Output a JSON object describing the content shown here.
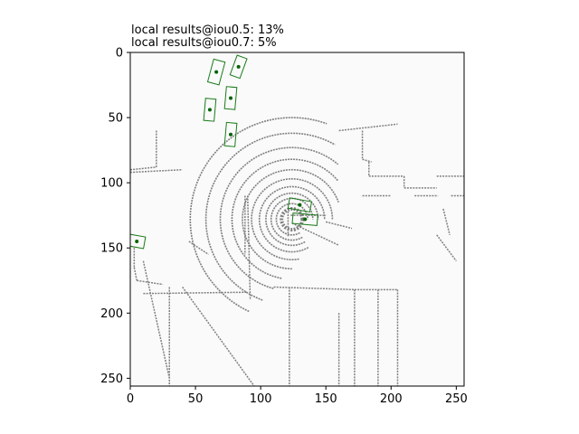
{
  "chart_data": {
    "type": "scatter",
    "title_lines": [
      "local results@iou0.5: 13%",
      "local results@iou0.7: 5%"
    ],
    "xlabel": "",
    "ylabel": "",
    "xlim": [
      0,
      256
    ],
    "ylim": [
      256,
      0
    ],
    "y_axis_inverted": true,
    "x_ticks": [
      0,
      50,
      100,
      150,
      200,
      250
    ],
    "y_ticks": [
      0,
      50,
      100,
      150,
      200,
      250
    ],
    "grid": false,
    "background_color": "#fafafa",
    "point_cloud_color": "#808080",
    "box_color": "#1a7a1a",
    "center_color": "#006400",
    "point_cloud": {
      "sensor_center": [
        124,
        128
      ],
      "rings": [
        {
          "r": 12,
          "start": 60,
          "end": 360
        },
        {
          "r": 16,
          "start": 60,
          "end": 360
        },
        {
          "r": 20,
          "start": 60,
          "end": 360
        },
        {
          "r": 25,
          "start": 60,
          "end": 360
        },
        {
          "r": 31,
          "start": 80,
          "end": 360
        },
        {
          "r": 38,
          "start": 90,
          "end": 340
        },
        {
          "r": 46,
          "start": 100,
          "end": 320
        },
        {
          "r": 55,
          "start": 105,
          "end": 310
        },
        {
          "r": 66,
          "start": 110,
          "end": 300
        },
        {
          "r": 78,
          "start": 115,
          "end": 290
        }
      ],
      "segments": [
        [
          [
            121,
            122
          ],
          [
            121,
            141
          ]
        ],
        [
          [
            123,
            125
          ],
          [
            150,
            125
          ]
        ],
        [
          [
            150,
            130
          ],
          [
            170,
            135
          ]
        ],
        [
          [
            124,
            131
          ],
          [
            160,
            148
          ]
        ],
        [
          [
            0,
            90
          ],
          [
            20,
            88
          ]
        ],
        [
          [
            0,
            92
          ],
          [
            40,
            90
          ]
        ],
        [
          [
            20,
            60
          ],
          [
            20,
            88
          ]
        ],
        [
          [
            3,
            150
          ],
          [
            3,
            165
          ]
        ],
        [
          [
            3,
            165
          ],
          [
            5,
            175
          ]
        ],
        [
          [
            5,
            175
          ],
          [
            25,
            178
          ]
        ],
        [
          [
            10,
            185
          ],
          [
            90,
            184
          ]
        ],
        [
          [
            88,
            110
          ],
          [
            88,
            155
          ]
        ],
        [
          [
            90,
            110
          ],
          [
            92,
            190
          ]
        ],
        [
          [
            110,
            180
          ],
          [
            172,
            182
          ]
        ],
        [
          [
            172,
            182
          ],
          [
            172,
            256
          ]
        ],
        [
          [
            172,
            182
          ],
          [
            205,
            182
          ]
        ],
        [
          [
            160,
            200
          ],
          [
            160,
            256
          ]
        ],
        [
          [
            122,
            180
          ],
          [
            122,
            256
          ]
        ],
        [
          [
            30,
            180
          ],
          [
            30,
            256
          ]
        ],
        [
          [
            190,
            182
          ],
          [
            190,
            256
          ]
        ],
        [
          [
            205,
            182
          ],
          [
            205,
            256
          ]
        ],
        [
          [
            160,
            60
          ],
          [
            205,
            55
          ]
        ],
        [
          [
            178,
            60
          ],
          [
            178,
            82
          ]
        ],
        [
          [
            178,
            82
          ],
          [
            185,
            84
          ]
        ],
        [
          [
            183,
            84
          ],
          [
            183,
            95
          ]
        ],
        [
          [
            183,
            95
          ],
          [
            210,
            95
          ]
        ],
        [
          [
            210,
            95
          ],
          [
            210,
            104
          ]
        ],
        [
          [
            210,
            104
          ],
          [
            235,
            104
          ]
        ],
        [
          [
            235,
            95
          ],
          [
            256,
            95
          ]
        ],
        [
          [
            178,
            110
          ],
          [
            200,
            110
          ]
        ],
        [
          [
            218,
            110
          ],
          [
            236,
            110
          ]
        ],
        [
          [
            246,
            110
          ],
          [
            256,
            110
          ]
        ],
        [
          [
            45,
            145
          ],
          [
            60,
            155
          ]
        ],
        [
          [
            40,
            180
          ],
          [
            95,
            256
          ]
        ],
        [
          [
            10,
            160
          ],
          [
            30,
            250
          ]
        ],
        [
          [
            240,
            120
          ],
          [
            245,
            140
          ]
        ],
        [
          [
            235,
            140
          ],
          [
            250,
            160
          ]
        ]
      ]
    },
    "boxes": [
      {
        "center": [
          66,
          15
        ],
        "length": 18,
        "width": 9,
        "angle": 15
      },
      {
        "center": [
          83,
          11
        ],
        "length": 16,
        "width": 8,
        "angle": 20
      },
      {
        "center": [
          77,
          35
        ],
        "length": 17,
        "width": 8,
        "angle": 5
      },
      {
        "center": [
          61,
          44
        ],
        "length": 17,
        "width": 8,
        "angle": 5
      },
      {
        "center": [
          77,
          63
        ],
        "length": 18,
        "width": 8,
        "angle": 5
      },
      {
        "center": [
          130,
          117
        ],
        "length": 17,
        "width": 8,
        "angle": 100
      },
      {
        "center": [
          134,
          128
        ],
        "length": 19,
        "width": 8,
        "angle": 95
      },
      {
        "center": [
          5,
          145
        ],
        "length": 9,
        "width": 12,
        "angle": 10
      }
    ]
  }
}
